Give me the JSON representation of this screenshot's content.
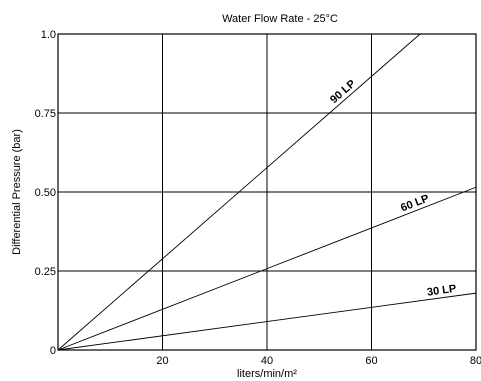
{
  "chart_data": {
    "type": "line",
    "title": "Water Flow Rate - 25°C",
    "xlabel": "liters/min/m²",
    "ylabel": "Differential Pressure (bar)",
    "xlim": [
      0,
      80
    ],
    "ylim": [
      0,
      1.0
    ],
    "x_ticks": [
      0,
      20,
      40,
      60,
      80
    ],
    "x_tick_labels": [
      "",
      "20",
      "40",
      "60",
      "80"
    ],
    "y_ticks": [
      0,
      0.25,
      0.5,
      0.75,
      1.0
    ],
    "y_tick_labels": [
      "0",
      "0.25",
      "0.50",
      "0.75",
      "1.0"
    ],
    "grid": true,
    "series": [
      {
        "name": "90 LP",
        "x": [
          0,
          69.3
        ],
        "y": [
          0,
          1.0
        ]
      },
      {
        "name": "60 LP",
        "x": [
          0,
          80
        ],
        "y": [
          0,
          0.515
        ]
      },
      {
        "name": "30 LP",
        "x": [
          0,
          80
        ],
        "y": [
          0,
          0.18
        ]
      }
    ]
  }
}
